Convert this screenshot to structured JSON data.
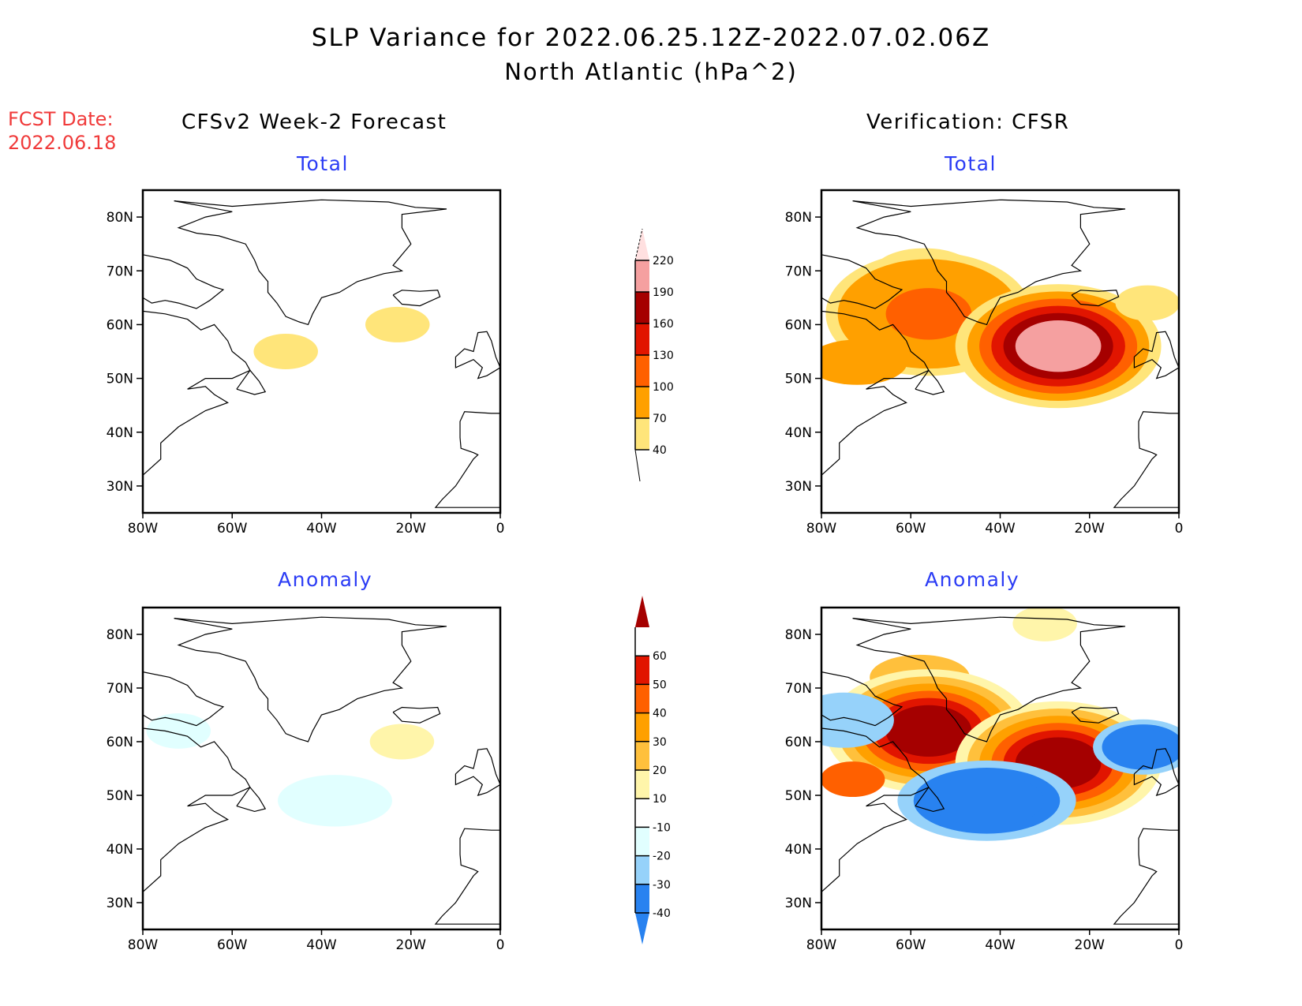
{
  "header": {
    "title": "SLP Variance for 2022.06.25.12Z-2022.07.02.06Z",
    "subtitle": "North Atlantic (hPa^2)",
    "fcst_date_label": "FCST Date:",
    "fcst_date_value": "2022.06.18",
    "left_column_title": "CFSv2 Week-2 Forecast",
    "right_column_title": "Verification: CFSR"
  },
  "colors": {
    "title_text": "#000000",
    "panel_title_text": "#2b3cf5",
    "fcst_date_text": "#f03a3a"
  },
  "chart_data": [
    {
      "type": "heatmap",
      "id": "forecast-total",
      "title": "Total",
      "column": "CFSv2 Week-2 Forecast",
      "xlabel": "",
      "ylabel": "",
      "xlim": [
        -80,
        0
      ],
      "ylim": [
        25,
        85
      ],
      "x_ticks": [
        "80W",
        "60W",
        "40W",
        "20W",
        "0"
      ],
      "y_ticks": [
        "30N",
        "40N",
        "50N",
        "60N",
        "70N",
        "80N"
      ],
      "colorbar": "total",
      "regions": [
        {
          "description": "Labrador Sea / Newfoundland",
          "center": [
            -48,
            55
          ],
          "level_range": [
            40,
            70
          ]
        },
        {
          "description": "South of Iceland",
          "center": [
            -23,
            60
          ],
          "level_range": [
            40,
            70
          ]
        }
      ]
    },
    {
      "type": "heatmap",
      "id": "verification-total",
      "title": "Total",
      "column": "Verification: CFSR",
      "xlim": [
        -80,
        0
      ],
      "ylim": [
        25,
        85
      ],
      "x_ticks": [
        "80W",
        "60W",
        "40W",
        "20W",
        "0"
      ],
      "y_ticks": [
        "30N",
        "40N",
        "50N",
        "60N",
        "70N",
        "80N"
      ],
      "colorbar": "total",
      "regions": [
        {
          "description": "Baffin Bay to Labrador band",
          "center": [
            -57,
            70
          ],
          "level_range": [
            40,
            70
          ]
        },
        {
          "description": "Labrador Sea maximum",
          "center": [
            -56,
            62
          ],
          "level_range": [
            100,
            130
          ]
        },
        {
          "description": "Hudson Bay / Quebec band",
          "center": [
            -72,
            53
          ],
          "level_range": [
            70,
            100
          ]
        },
        {
          "description": "Central N. Atlantic maximum",
          "center": [
            -27,
            56
          ],
          "level_range": [
            190,
            220
          ]
        },
        {
          "description": "East of Iceland",
          "center": [
            -7,
            64
          ],
          "level_range": [
            40,
            70
          ]
        }
      ]
    },
    {
      "type": "heatmap",
      "id": "forecast-anomaly",
      "title": "Anomaly",
      "column": "CFSv2 Week-2 Forecast",
      "xlim": [
        -80,
        0
      ],
      "ylim": [
        25,
        85
      ],
      "x_ticks": [
        "80W",
        "60W",
        "40W",
        "20W",
        "0"
      ],
      "y_ticks": [
        "30N",
        "40N",
        "50N",
        "60N",
        "70N",
        "80N"
      ],
      "colorbar": "anomaly",
      "regions": [
        {
          "description": "Hudson Strait",
          "center": [
            -72,
            62
          ],
          "level_range": [
            -20,
            -10
          ]
        },
        {
          "description": "South of Iceland",
          "center": [
            -22,
            60
          ],
          "level_range": [
            10,
            20
          ]
        },
        {
          "description": "Central N. Atlantic",
          "center": [
            -37,
            49
          ],
          "level_range": [
            -20,
            -10
          ]
        }
      ]
    },
    {
      "type": "heatmap",
      "id": "verification-anomaly",
      "title": "Anomaly",
      "column": "Verification: CFSR",
      "xlim": [
        -80,
        0
      ],
      "ylim": [
        25,
        85
      ],
      "x_ticks": [
        "80W",
        "60W",
        "40W",
        "20W",
        "0"
      ],
      "y_ticks": [
        "30N",
        "40N",
        "50N",
        "60N",
        "70N",
        "80N"
      ],
      "colorbar": "anomaly",
      "regions": [
        {
          "description": "Northern Greenland",
          "center": [
            -30,
            82
          ],
          "level_range": [
            10,
            20
          ]
        },
        {
          "description": "Baffin Bay band",
          "center": [
            -58,
            72
          ],
          "level_range": [
            20,
            40
          ]
        },
        {
          "description": "Labrador Sea maximum",
          "center": [
            -56,
            62
          ],
          "level_range": [
            60,
            80
          ]
        },
        {
          "description": "Hudson Bay / Quebec",
          "center": [
            -73,
            53
          ],
          "level_range": [
            40,
            60
          ]
        },
        {
          "description": "Baffin Island negative",
          "center": [
            -75,
            64
          ],
          "level_range": [
            -30,
            -20
          ]
        },
        {
          "description": "Central N. Atlantic maximum",
          "center": [
            -27,
            56
          ],
          "level_range": [
            60,
            80
          ]
        },
        {
          "description": "South of Newfoundland negative",
          "center": [
            -43,
            49
          ],
          "level_range": [
            -40,
            -30
          ]
        },
        {
          "description": "Northeast Atlantic negative",
          "center": [
            -8,
            59
          ],
          "level_range": [
            -40,
            -30
          ]
        }
      ]
    }
  ],
  "colorbars": {
    "total": {
      "labels": [
        "40",
        "70",
        "100",
        "130",
        "160",
        "190",
        "220"
      ],
      "colors": [
        "#ffe57a",
        "#ffa000",
        "#ff6000",
        "#e11500",
        "#a50000",
        "#f5a0a0",
        "#ffe0e0"
      ],
      "below_color": "#ffffff"
    },
    "anomaly": {
      "labels": [
        "-40",
        "-30",
        "-20",
        "-10",
        "10",
        "20",
        "30",
        "40",
        "50",
        "60"
      ],
      "colors": [
        "#1464d2",
        "#2882f0",
        "#96d2fa",
        "#e1ffff",
        "#ffffff",
        "#fff5aa",
        "#ffc03c",
        "#ffa000",
        "#ff6000",
        "#e11500",
        "#a50000"
      ]
    }
  }
}
